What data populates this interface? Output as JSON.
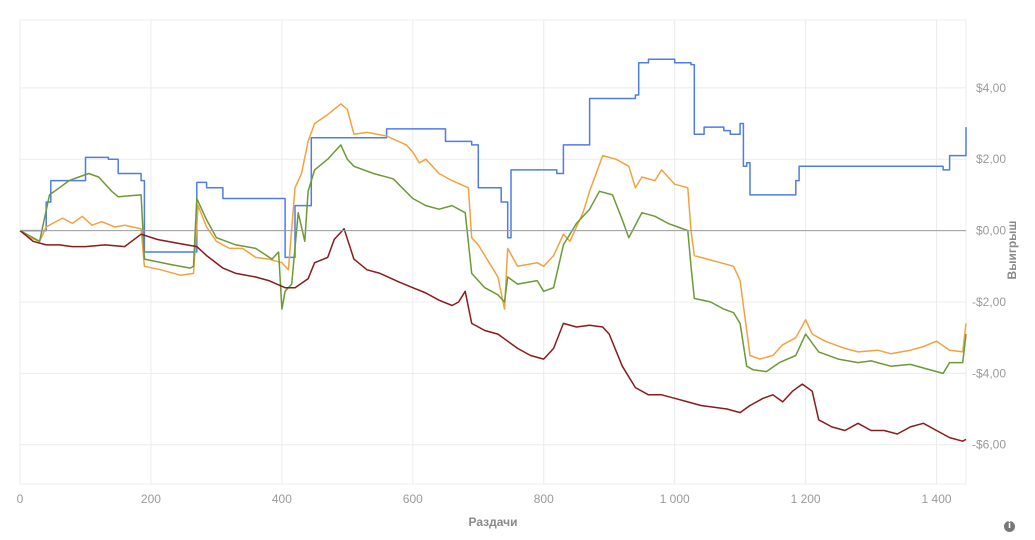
{
  "chart_data": {
    "type": "line",
    "xlabel": "Раздачи",
    "ylabel": "Выигрыш",
    "xlim": [
      0,
      1445
    ],
    "ylim": [
      -7.1,
      5.9
    ],
    "x_ticks": [
      {
        "value": 0,
        "label": "0"
      },
      {
        "value": 200,
        "label": "200"
      },
      {
        "value": 400,
        "label": "400"
      },
      {
        "value": 600,
        "label": "600"
      },
      {
        "value": 800,
        "label": "800"
      },
      {
        "value": 1000,
        "label": "1 000"
      },
      {
        "value": 1200,
        "label": "1 200"
      },
      {
        "value": 1400,
        "label": "1 400"
      }
    ],
    "y_ticks": [
      {
        "value": 4,
        "label": "$4,00"
      },
      {
        "value": 2,
        "label": "$2,00"
      },
      {
        "value": 0,
        "label": "$0,00"
      },
      {
        "value": -2,
        "label": "-$2,00"
      },
      {
        "value": -4,
        "label": "-$4,00"
      },
      {
        "value": -6,
        "label": "-$6,00"
      }
    ],
    "grid": true,
    "series": [
      {
        "color": "#4f7ce8",
        "step": true,
        "points": [
          [
            0,
            0
          ],
          [
            30,
            0
          ],
          [
            40,
            0.8
          ],
          [
            47,
            1.4
          ],
          [
            95,
            1.4
          ],
          [
            100,
            2.05
          ],
          [
            135,
            2.0
          ],
          [
            150,
            1.6
          ],
          [
            185,
            1.4
          ],
          [
            190,
            -0.6
          ],
          [
            265,
            -0.6
          ],
          [
            270,
            1.35
          ],
          [
            285,
            1.2
          ],
          [
            310,
            0.9
          ],
          [
            400,
            0.9
          ],
          [
            405,
            -0.75
          ],
          [
            420,
            0.7
          ],
          [
            440,
            0.7
          ],
          [
            445,
            2.6
          ],
          [
            550,
            2.6
          ],
          [
            560,
            2.85
          ],
          [
            640,
            2.85
          ],
          [
            650,
            2.5
          ],
          [
            690,
            2.4
          ],
          [
            700,
            1.2
          ],
          [
            735,
            0.8
          ],
          [
            745,
            -0.2
          ],
          [
            750,
            1.7
          ],
          [
            800,
            1.7
          ],
          [
            820,
            1.6
          ],
          [
            830,
            2.4
          ],
          [
            860,
            2.4
          ],
          [
            870,
            3.7
          ],
          [
            940,
            3.8
          ],
          [
            945,
            4.7
          ],
          [
            960,
            4.8
          ],
          [
            1000,
            4.7
          ],
          [
            1025,
            4.65
          ],
          [
            1030,
            2.7
          ],
          [
            1045,
            2.9
          ],
          [
            1075,
            2.8
          ],
          [
            1085,
            2.7
          ],
          [
            1100,
            3.0
          ],
          [
            1105,
            1.8
          ],
          [
            1110,
            1.9
          ],
          [
            1115,
            1.0
          ],
          [
            1180,
            1.0
          ],
          [
            1185,
            1.4
          ],
          [
            1190,
            1.8
          ],
          [
            1300,
            1.8
          ],
          [
            1350,
            1.8
          ],
          [
            1380,
            1.8
          ],
          [
            1410,
            1.7
          ],
          [
            1420,
            2.1
          ],
          [
            1440,
            2.1
          ],
          [
            1445,
            2.9
          ]
        ]
      },
      {
        "color": "#f4a240",
        "step": false,
        "points": [
          [
            0,
            0
          ],
          [
            15,
            -0.2
          ],
          [
            30,
            -0.3
          ],
          [
            40,
            0.1
          ],
          [
            50,
            0.2
          ],
          [
            65,
            0.35
          ],
          [
            80,
            0.2
          ],
          [
            95,
            0.4
          ],
          [
            110,
            0.15
          ],
          [
            125,
            0.25
          ],
          [
            145,
            0.1
          ],
          [
            160,
            0.15
          ],
          [
            185,
            0.05
          ],
          [
            190,
            -1.0
          ],
          [
            215,
            -1.1
          ],
          [
            245,
            -1.25
          ],
          [
            265,
            -1.2
          ],
          [
            272,
            0.7
          ],
          [
            285,
            0.1
          ],
          [
            300,
            -0.3
          ],
          [
            320,
            -0.5
          ],
          [
            340,
            -0.5
          ],
          [
            360,
            -0.75
          ],
          [
            380,
            -0.8
          ],
          [
            400,
            -0.9
          ],
          [
            410,
            -1.1
          ],
          [
            420,
            1.2
          ],
          [
            430,
            1.6
          ],
          [
            440,
            2.5
          ],
          [
            450,
            3.0
          ],
          [
            470,
            3.25
          ],
          [
            490,
            3.55
          ],
          [
            500,
            3.4
          ],
          [
            510,
            2.7
          ],
          [
            530,
            2.75
          ],
          [
            560,
            2.65
          ],
          [
            590,
            2.4
          ],
          [
            600,
            2.2
          ],
          [
            610,
            1.9
          ],
          [
            620,
            2.0
          ],
          [
            640,
            1.6
          ],
          [
            660,
            1.4
          ],
          [
            685,
            1.2
          ],
          [
            690,
            -0.2
          ],
          [
            700,
            -0.4
          ],
          [
            720,
            -1.0
          ],
          [
            730,
            -1.3
          ],
          [
            740,
            -2.2
          ],
          [
            745,
            -0.5
          ],
          [
            760,
            -1.0
          ],
          [
            790,
            -0.9
          ],
          [
            800,
            -1.0
          ],
          [
            815,
            -0.7
          ],
          [
            830,
            -0.1
          ],
          [
            840,
            -0.3
          ],
          [
            860,
            0.5
          ],
          [
            870,
            1.1
          ],
          [
            890,
            2.1
          ],
          [
            910,
            2.0
          ],
          [
            930,
            1.8
          ],
          [
            940,
            1.2
          ],
          [
            950,
            1.5
          ],
          [
            970,
            1.4
          ],
          [
            980,
            1.7
          ],
          [
            1000,
            1.3
          ],
          [
            1020,
            1.2
          ],
          [
            1025,
            0.0
          ],
          [
            1030,
            -0.7
          ],
          [
            1050,
            -0.8
          ],
          [
            1070,
            -0.9
          ],
          [
            1090,
            -1.0
          ],
          [
            1100,
            -1.4
          ],
          [
            1110,
            -2.8
          ],
          [
            1115,
            -3.5
          ],
          [
            1130,
            -3.6
          ],
          [
            1150,
            -3.5
          ],
          [
            1165,
            -3.2
          ],
          [
            1185,
            -3.0
          ],
          [
            1200,
            -2.5
          ],
          [
            1210,
            -2.9
          ],
          [
            1230,
            -3.1
          ],
          [
            1260,
            -3.3
          ],
          [
            1280,
            -3.4
          ],
          [
            1310,
            -3.35
          ],
          [
            1330,
            -3.45
          ],
          [
            1360,
            -3.35
          ],
          [
            1380,
            -3.25
          ],
          [
            1400,
            -3.1
          ],
          [
            1420,
            -3.35
          ],
          [
            1440,
            -3.4
          ],
          [
            1445,
            -2.6
          ]
        ]
      },
      {
        "color": "#6b9a35",
        "step": false,
        "points": [
          [
            0,
            0
          ],
          [
            15,
            -0.15
          ],
          [
            30,
            -0.3
          ],
          [
            45,
            1.0
          ],
          [
            60,
            1.2
          ],
          [
            75,
            1.4
          ],
          [
            90,
            1.5
          ],
          [
            105,
            1.6
          ],
          [
            120,
            1.5
          ],
          [
            140,
            1.1
          ],
          [
            150,
            0.95
          ],
          [
            185,
            1.0
          ],
          [
            190,
            -0.8
          ],
          [
            230,
            -0.95
          ],
          [
            260,
            -1.05
          ],
          [
            265,
            -1.0
          ],
          [
            270,
            0.9
          ],
          [
            285,
            0.3
          ],
          [
            300,
            -0.2
          ],
          [
            330,
            -0.4
          ],
          [
            360,
            -0.5
          ],
          [
            385,
            -0.8
          ],
          [
            395,
            -0.6
          ],
          [
            400,
            -2.2
          ],
          [
            405,
            -1.7
          ],
          [
            415,
            -1.5
          ],
          [
            425,
            0.5
          ],
          [
            435,
            -0.3
          ],
          [
            440,
            1.1
          ],
          [
            450,
            1.7
          ],
          [
            470,
            2.0
          ],
          [
            490,
            2.4
          ],
          [
            500,
            2.0
          ],
          [
            510,
            1.8
          ],
          [
            540,
            1.6
          ],
          [
            570,
            1.45
          ],
          [
            600,
            0.9
          ],
          [
            620,
            0.7
          ],
          [
            640,
            0.6
          ],
          [
            660,
            0.7
          ],
          [
            680,
            0.5
          ],
          [
            690,
            -1.2
          ],
          [
            710,
            -1.6
          ],
          [
            730,
            -1.8
          ],
          [
            740,
            -2.0
          ],
          [
            745,
            -1.3
          ],
          [
            760,
            -1.5
          ],
          [
            790,
            -1.4
          ],
          [
            800,
            -1.7
          ],
          [
            815,
            -1.6
          ],
          [
            830,
            -0.4
          ],
          [
            850,
            0.2
          ],
          [
            870,
            0.6
          ],
          [
            885,
            1.1
          ],
          [
            905,
            1.0
          ],
          [
            920,
            0.3
          ],
          [
            930,
            -0.2
          ],
          [
            950,
            0.5
          ],
          [
            970,
            0.4
          ],
          [
            990,
            0.2
          ],
          [
            1005,
            0.1
          ],
          [
            1020,
            0.0
          ],
          [
            1025,
            -1.0
          ],
          [
            1030,
            -1.9
          ],
          [
            1055,
            -2.0
          ],
          [
            1075,
            -2.2
          ],
          [
            1090,
            -2.3
          ],
          [
            1100,
            -2.6
          ],
          [
            1110,
            -3.8
          ],
          [
            1120,
            -3.9
          ],
          [
            1140,
            -3.95
          ],
          [
            1160,
            -3.7
          ],
          [
            1185,
            -3.5
          ],
          [
            1200,
            -2.9
          ],
          [
            1220,
            -3.4
          ],
          [
            1250,
            -3.6
          ],
          [
            1280,
            -3.7
          ],
          [
            1300,
            -3.65
          ],
          [
            1330,
            -3.8
          ],
          [
            1360,
            -3.75
          ],
          [
            1380,
            -3.85
          ],
          [
            1410,
            -4.0
          ],
          [
            1420,
            -3.7
          ],
          [
            1440,
            -3.7
          ],
          [
            1445,
            -2.9
          ]
        ]
      },
      {
        "color": "#8b1a1a",
        "step": false,
        "points": [
          [
            0,
            0
          ],
          [
            20,
            -0.3
          ],
          [
            40,
            -0.4
          ],
          [
            60,
            -0.4
          ],
          [
            80,
            -0.45
          ],
          [
            100,
            -0.45
          ],
          [
            130,
            -0.4
          ],
          [
            160,
            -0.45
          ],
          [
            185,
            -0.1
          ],
          [
            210,
            -0.25
          ],
          [
            240,
            -0.35
          ],
          [
            270,
            -0.45
          ],
          [
            285,
            -0.7
          ],
          [
            310,
            -1.05
          ],
          [
            330,
            -1.2
          ],
          [
            360,
            -1.3
          ],
          [
            380,
            -1.4
          ],
          [
            405,
            -1.6
          ],
          [
            420,
            -1.6
          ],
          [
            440,
            -1.35
          ],
          [
            450,
            -0.9
          ],
          [
            470,
            -0.75
          ],
          [
            480,
            -0.25
          ],
          [
            495,
            0.05
          ],
          [
            510,
            -0.8
          ],
          [
            530,
            -1.1
          ],
          [
            550,
            -1.2
          ],
          [
            580,
            -1.45
          ],
          [
            600,
            -1.6
          ],
          [
            620,
            -1.75
          ],
          [
            640,
            -1.95
          ],
          [
            660,
            -2.1
          ],
          [
            670,
            -2.0
          ],
          [
            680,
            -1.7
          ],
          [
            690,
            -2.6
          ],
          [
            710,
            -2.8
          ],
          [
            730,
            -2.9
          ],
          [
            745,
            -3.1
          ],
          [
            760,
            -3.3
          ],
          [
            780,
            -3.5
          ],
          [
            800,
            -3.6
          ],
          [
            815,
            -3.3
          ],
          [
            830,
            -2.6
          ],
          [
            850,
            -2.7
          ],
          [
            870,
            -2.65
          ],
          [
            890,
            -2.7
          ],
          [
            900,
            -2.9
          ],
          [
            920,
            -3.8
          ],
          [
            940,
            -4.4
          ],
          [
            960,
            -4.6
          ],
          [
            980,
            -4.6
          ],
          [
            1000,
            -4.7
          ],
          [
            1020,
            -4.8
          ],
          [
            1040,
            -4.9
          ],
          [
            1060,
            -4.95
          ],
          [
            1080,
            -5.0
          ],
          [
            1100,
            -5.1
          ],
          [
            1115,
            -4.9
          ],
          [
            1135,
            -4.7
          ],
          [
            1150,
            -4.6
          ],
          [
            1165,
            -4.8
          ],
          [
            1180,
            -4.5
          ],
          [
            1195,
            -4.3
          ],
          [
            1210,
            -4.5
          ],
          [
            1220,
            -5.3
          ],
          [
            1240,
            -5.5
          ],
          [
            1260,
            -5.6
          ],
          [
            1280,
            -5.4
          ],
          [
            1300,
            -5.6
          ],
          [
            1320,
            -5.6
          ],
          [
            1340,
            -5.7
          ],
          [
            1360,
            -5.5
          ],
          [
            1380,
            -5.4
          ],
          [
            1400,
            -5.6
          ],
          [
            1420,
            -5.8
          ],
          [
            1440,
            -5.9
          ],
          [
            1445,
            -5.85
          ]
        ]
      }
    ]
  },
  "info_icon": "info-icon"
}
